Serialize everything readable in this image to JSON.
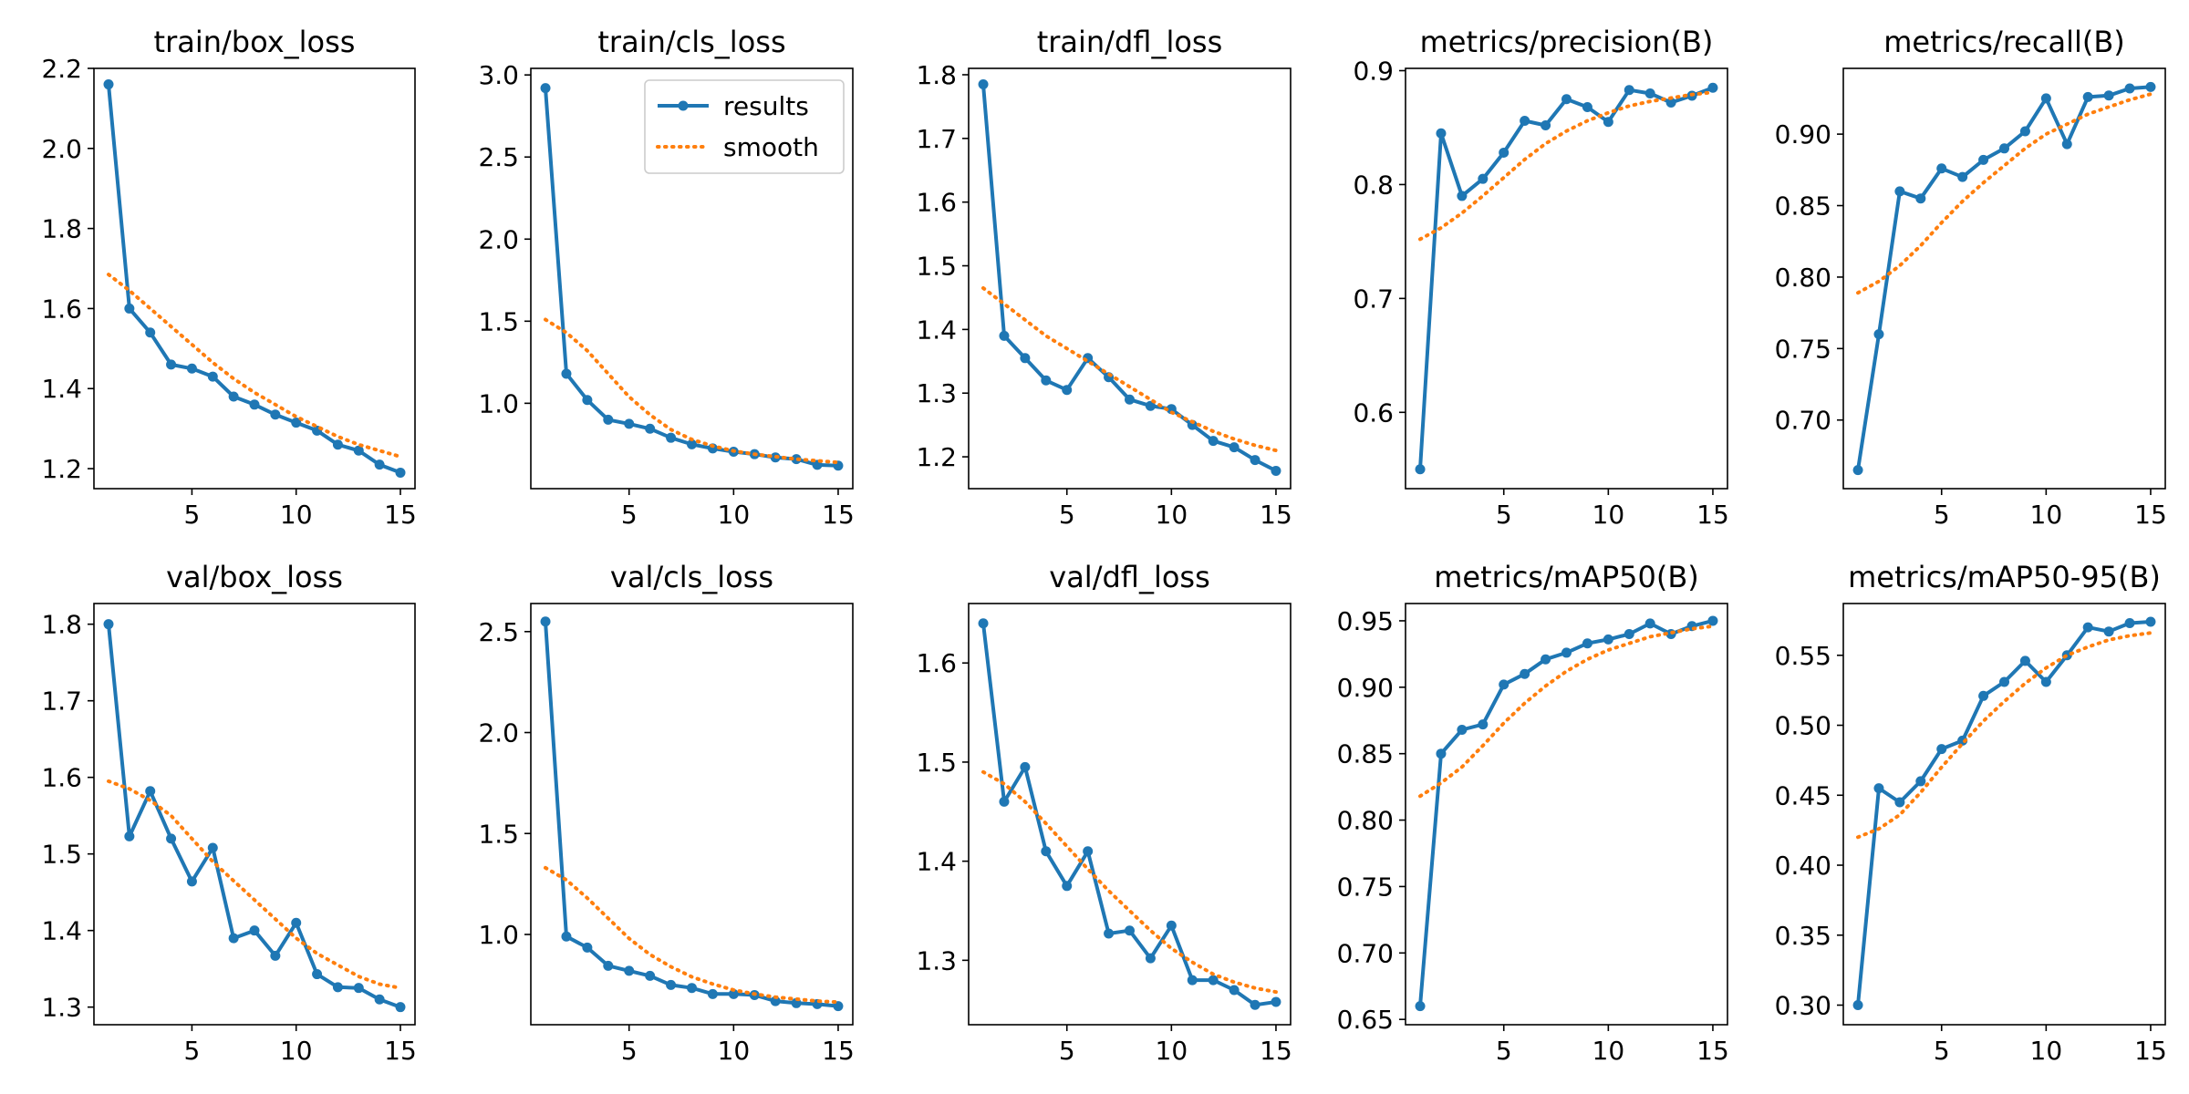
{
  "figure": {
    "background": "#ffffff"
  },
  "colors": {
    "results": "#1f77b4",
    "smooth": "#ff7f0e",
    "axes": "#000000"
  },
  "legend": {
    "entries": [
      "results",
      "smooth"
    ],
    "panel_index": 1,
    "placement": "upper right"
  },
  "chart_data": [
    {
      "type": "line",
      "title": "train/box_loss",
      "x": [
        1,
        2,
        3,
        4,
        5,
        6,
        7,
        8,
        9,
        10,
        11,
        12,
        13,
        14,
        15
      ],
      "xlim": [
        0.3,
        15.7
      ],
      "xticks": [
        5,
        10,
        15
      ],
      "ylim": [
        1.15,
        2.2
      ],
      "yticks": [
        1.2,
        1.4,
        1.6,
        1.8,
        2.0,
        2.2
      ],
      "ytick_labels": [
        "1.2",
        "1.4",
        "1.6",
        "1.8",
        "2.0",
        "2.2"
      ],
      "series": [
        {
          "name": "results",
          "style": "solid-markers",
          "values": [
            2.16,
            1.6,
            1.54,
            1.46,
            1.45,
            1.43,
            1.38,
            1.36,
            1.335,
            1.315,
            1.295,
            1.26,
            1.245,
            1.21,
            1.19
          ]
        },
        {
          "name": "smooth",
          "style": "dotted",
          "values": [
            1.685,
            1.645,
            1.6,
            1.555,
            1.51,
            1.465,
            1.425,
            1.39,
            1.36,
            1.33,
            1.305,
            1.28,
            1.26,
            1.245,
            1.23
          ]
        }
      ]
    },
    {
      "type": "line",
      "title": "train/cls_loss",
      "x": [
        1,
        2,
        3,
        4,
        5,
        6,
        7,
        8,
        9,
        10,
        11,
        12,
        13,
        14,
        15
      ],
      "xlim": [
        0.3,
        15.7
      ],
      "xticks": [
        5,
        10,
        15
      ],
      "ylim": [
        0.48,
        3.04
      ],
      "yticks": [
        1.0,
        1.5,
        2.0,
        2.5,
        3.0
      ],
      "ytick_labels": [
        "1.0",
        "1.5",
        "2.0",
        "2.5",
        "3.0"
      ],
      "series": [
        {
          "name": "results",
          "style": "solid-markers",
          "values": [
            2.92,
            1.18,
            1.02,
            0.9,
            0.875,
            0.845,
            0.79,
            0.75,
            0.725,
            0.705,
            0.69,
            0.67,
            0.66,
            0.625,
            0.62
          ]
        },
        {
          "name": "smooth",
          "style": "dotted",
          "values": [
            1.51,
            1.43,
            1.32,
            1.18,
            1.04,
            0.93,
            0.84,
            0.78,
            0.74,
            0.71,
            0.69,
            0.675,
            0.66,
            0.65,
            0.64
          ]
        }
      ]
    },
    {
      "type": "line",
      "title": "train/dfl_loss",
      "x": [
        1,
        2,
        3,
        4,
        5,
        6,
        7,
        8,
        9,
        10,
        11,
        12,
        13,
        14,
        15
      ],
      "xlim": [
        0.3,
        15.7
      ],
      "xticks": [
        5,
        10,
        15
      ],
      "ylim": [
        1.15,
        1.81
      ],
      "yticks": [
        1.2,
        1.3,
        1.4,
        1.5,
        1.6,
        1.7,
        1.8
      ],
      "ytick_labels": [
        "1.2",
        "1.3",
        "1.4",
        "1.5",
        "1.6",
        "1.7",
        "1.8"
      ],
      "series": [
        {
          "name": "results",
          "style": "solid-markers",
          "values": [
            1.785,
            1.39,
            1.355,
            1.32,
            1.305,
            1.355,
            1.325,
            1.29,
            1.28,
            1.275,
            1.25,
            1.225,
            1.215,
            1.195,
            1.178
          ]
        },
        {
          "name": "smooth",
          "style": "dotted",
          "values": [
            1.465,
            1.44,
            1.415,
            1.39,
            1.37,
            1.35,
            1.33,
            1.31,
            1.29,
            1.27,
            1.255,
            1.24,
            1.228,
            1.218,
            1.21
          ]
        }
      ]
    },
    {
      "type": "line",
      "title": "metrics/precision(B)",
      "x": [
        1,
        2,
        3,
        4,
        5,
        6,
        7,
        8,
        9,
        10,
        11,
        12,
        13,
        14,
        15
      ],
      "xlim": [
        0.3,
        15.7
      ],
      "xticks": [
        5,
        10,
        15
      ],
      "ylim": [
        0.533,
        0.902
      ],
      "yticks": [
        0.6,
        0.7,
        0.8,
        0.9
      ],
      "ytick_labels": [
        "0.6",
        "0.7",
        "0.8",
        "0.9"
      ],
      "series": [
        {
          "name": "results",
          "style": "solid-markers",
          "values": [
            0.55,
            0.845,
            0.79,
            0.805,
            0.828,
            0.856,
            0.852,
            0.875,
            0.868,
            0.855,
            0.883,
            0.88,
            0.872,
            0.878,
            0.885
          ]
        },
        {
          "name": "smooth",
          "style": "dotted",
          "values": [
            0.752,
            0.762,
            0.775,
            0.79,
            0.806,
            0.822,
            0.836,
            0.847,
            0.856,
            0.863,
            0.869,
            0.873,
            0.876,
            0.879,
            0.881
          ]
        }
      ]
    },
    {
      "type": "line",
      "title": "metrics/recall(B)",
      "x": [
        1,
        2,
        3,
        4,
        5,
        6,
        7,
        8,
        9,
        10,
        11,
        12,
        13,
        14,
        15
      ],
      "xlim": [
        0.3,
        15.7
      ],
      "xticks": [
        5,
        10,
        15
      ],
      "ylim": [
        0.652,
        0.946
      ],
      "yticks": [
        0.7,
        0.75,
        0.8,
        0.85,
        0.9
      ],
      "ytick_labels": [
        "0.70",
        "0.75",
        "0.80",
        "0.85",
        "0.90"
      ],
      "series": [
        {
          "name": "results",
          "style": "solid-markers",
          "values": [
            0.665,
            0.76,
            0.86,
            0.855,
            0.876,
            0.87,
            0.882,
            0.89,
            0.902,
            0.925,
            0.893,
            0.926,
            0.927,
            0.932,
            0.933
          ]
        },
        {
          "name": "smooth",
          "style": "dotted",
          "values": [
            0.789,
            0.797,
            0.808,
            0.822,
            0.838,
            0.853,
            0.866,
            0.878,
            0.89,
            0.9,
            0.907,
            0.914,
            0.919,
            0.924,
            0.928
          ]
        }
      ]
    },
    {
      "type": "line",
      "title": "val/box_loss",
      "x": [
        1,
        2,
        3,
        4,
        5,
        6,
        7,
        8,
        9,
        10,
        11,
        12,
        13,
        14,
        15
      ],
      "xlim": [
        0.3,
        15.7
      ],
      "xticks": [
        5,
        10,
        15
      ],
      "ylim": [
        1.277,
        1.827
      ],
      "yticks": [
        1.3,
        1.4,
        1.5,
        1.6,
        1.7,
        1.8
      ],
      "ytick_labels": [
        "1.3",
        "1.4",
        "1.5",
        "1.6",
        "1.7",
        "1.8"
      ],
      "series": [
        {
          "name": "results",
          "style": "solid-markers",
          "values": [
            1.8,
            1.523,
            1.582,
            1.52,
            1.464,
            1.508,
            1.39,
            1.4,
            1.367,
            1.41,
            1.343,
            1.326,
            1.325,
            1.31,
            1.3
          ]
        },
        {
          "name": "smooth",
          "style": "dotted",
          "values": [
            1.595,
            1.585,
            1.57,
            1.55,
            1.52,
            1.49,
            1.465,
            1.44,
            1.415,
            1.39,
            1.37,
            1.355,
            1.34,
            1.33,
            1.325
          ]
        }
      ]
    },
    {
      "type": "line",
      "title": "val/cls_loss",
      "x": [
        1,
        2,
        3,
        4,
        5,
        6,
        7,
        8,
        9,
        10,
        11,
        12,
        13,
        14,
        15
      ],
      "xlim": [
        0.3,
        15.7
      ],
      "xticks": [
        5,
        10,
        15
      ],
      "ylim": [
        0.553,
        2.639
      ],
      "yticks": [
        1.0,
        1.5,
        2.0,
        2.5
      ],
      "ytick_labels": [
        "1.0",
        "1.5",
        "2.0",
        "2.5"
      ],
      "series": [
        {
          "name": "results",
          "style": "solid-markers",
          "values": [
            2.55,
            0.99,
            0.935,
            0.845,
            0.82,
            0.795,
            0.75,
            0.735,
            0.705,
            0.705,
            0.7,
            0.67,
            0.66,
            0.655,
            0.645
          ]
        },
        {
          "name": "smooth",
          "style": "dotted",
          "values": [
            1.33,
            1.27,
            1.18,
            1.08,
            0.98,
            0.9,
            0.84,
            0.79,
            0.755,
            0.725,
            0.705,
            0.69,
            0.68,
            0.67,
            0.665
          ]
        }
      ]
    },
    {
      "type": "line",
      "title": "val/dfl_loss",
      "x": [
        1,
        2,
        3,
        4,
        5,
        6,
        7,
        8,
        9,
        10,
        11,
        12,
        13,
        14,
        15
      ],
      "xlim": [
        0.3,
        15.7
      ],
      "xticks": [
        5,
        10,
        15
      ],
      "ylim": [
        1.235,
        1.66
      ],
      "yticks": [
        1.3,
        1.4,
        1.5,
        1.6
      ],
      "ytick_labels": [
        "1.3",
        "1.4",
        "1.5",
        "1.6"
      ],
      "series": [
        {
          "name": "results",
          "style": "solid-markers",
          "values": [
            1.64,
            1.46,
            1.495,
            1.41,
            1.375,
            1.41,
            1.327,
            1.33,
            1.302,
            1.335,
            1.28,
            1.28,
            1.27,
            1.255,
            1.258
          ]
        },
        {
          "name": "smooth",
          "style": "dotted",
          "values": [
            1.49,
            1.478,
            1.46,
            1.438,
            1.415,
            1.392,
            1.37,
            1.35,
            1.33,
            1.312,
            1.298,
            1.286,
            1.278,
            1.272,
            1.268
          ]
        }
      ]
    },
    {
      "type": "line",
      "title": "metrics/mAP50(B)",
      "x": [
        1,
        2,
        3,
        4,
        5,
        6,
        7,
        8,
        9,
        10,
        11,
        12,
        13,
        14,
        15
      ],
      "xlim": [
        0.3,
        15.7
      ],
      "xticks": [
        5,
        10,
        15
      ],
      "ylim": [
        0.646,
        0.963
      ],
      "yticks": [
        0.65,
        0.7,
        0.75,
        0.8,
        0.85,
        0.9,
        0.95
      ],
      "ytick_labels": [
        "0.65",
        "0.70",
        "0.75",
        "0.80",
        "0.85",
        "0.90",
        "0.95"
      ],
      "series": [
        {
          "name": "results",
          "style": "solid-markers",
          "values": [
            0.66,
            0.85,
            0.868,
            0.872,
            0.902,
            0.91,
            0.921,
            0.926,
            0.933,
            0.936,
            0.94,
            0.948,
            0.94,
            0.946,
            0.95
          ]
        },
        {
          "name": "smooth",
          "style": "dotted",
          "values": [
            0.818,
            0.828,
            0.84,
            0.856,
            0.873,
            0.888,
            0.901,
            0.912,
            0.921,
            0.928,
            0.933,
            0.938,
            0.941,
            0.944,
            0.946
          ]
        }
      ]
    },
    {
      "type": "line",
      "title": "metrics/mAP50-95(B)",
      "x": [
        1,
        2,
        3,
        4,
        5,
        6,
        7,
        8,
        9,
        10,
        11,
        12,
        13,
        14,
        15
      ],
      "xlim": [
        0.3,
        15.7
      ],
      "xticks": [
        5,
        10,
        15
      ],
      "ylim": [
        0.286,
        0.587
      ],
      "yticks": [
        0.3,
        0.35,
        0.4,
        0.45,
        0.5,
        0.55
      ],
      "ytick_labels": [
        "0.30",
        "0.35",
        "0.40",
        "0.45",
        "0.50",
        "0.55"
      ],
      "series": [
        {
          "name": "results",
          "style": "solid-markers",
          "values": [
            0.3,
            0.455,
            0.445,
            0.46,
            0.483,
            0.489,
            0.521,
            0.531,
            0.546,
            0.531,
            0.55,
            0.57,
            0.567,
            0.573,
            0.574
          ]
        },
        {
          "name": "smooth",
          "style": "dotted",
          "values": [
            0.42,
            0.426,
            0.436,
            0.452,
            0.47,
            0.487,
            0.503,
            0.517,
            0.53,
            0.541,
            0.55,
            0.556,
            0.561,
            0.564,
            0.566
          ]
        }
      ]
    }
  ]
}
